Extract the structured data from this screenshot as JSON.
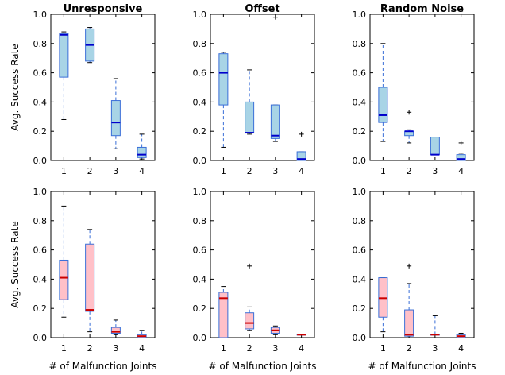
{
  "chart_data": {
    "type": "box",
    "ylabel": "Avg. Success Rate",
    "xlabel": "# of Malfunction Joints",
    "xticks": [
      "1",
      "2",
      "3",
      "4"
    ],
    "ylim": [
      0.0,
      1.0
    ],
    "yticks": [
      "0.0",
      "0.2",
      "0.4",
      "0.6",
      "0.8",
      "1.0"
    ],
    "column_titles": [
      "Unresponsive",
      "Offset",
      "Random Noise"
    ],
    "row_colors": [
      {
        "fill": "#a8d4e6",
        "median": "#0000cc",
        "whisker": "#3a6fd8"
      },
      {
        "fill": "#ffc0c8",
        "median": "#cc0000",
        "whisker": "#3a6fd8"
      }
    ],
    "panels": [
      {
        "row": 0,
        "col": 0,
        "boxes": [
          {
            "whislo": 0.28,
            "q1": 0.57,
            "med": 0.86,
            "q3": 0.87,
            "whishi": 0.88,
            "fliers": []
          },
          {
            "whislo": 0.67,
            "q1": 0.68,
            "med": 0.79,
            "q3": 0.9,
            "whishi": 0.91,
            "fliers": []
          },
          {
            "whislo": 0.08,
            "q1": 0.17,
            "med": 0.26,
            "q3": 0.41,
            "whishi": 0.56,
            "fliers": []
          },
          {
            "whislo": 0.01,
            "q1": 0.02,
            "med": 0.04,
            "q3": 0.09,
            "whishi": 0.18,
            "fliers": []
          }
        ]
      },
      {
        "row": 0,
        "col": 1,
        "boxes": [
          {
            "whislo": 0.09,
            "q1": 0.38,
            "med": 0.6,
            "q3": 0.73,
            "whishi": 0.74,
            "fliers": []
          },
          {
            "whislo": 0.18,
            "q1": 0.19,
            "med": 0.19,
            "q3": 0.4,
            "whishi": 0.62,
            "fliers": []
          },
          {
            "whislo": 0.13,
            "q1": 0.15,
            "med": 0.17,
            "q3": 0.38,
            "whishi": 0.38,
            "fliers": [
              0.98
            ]
          },
          {
            "whislo": 0.0,
            "q1": 0.0,
            "med": 0.01,
            "q3": 0.06,
            "whishi": 0.06,
            "fliers": [
              0.18
            ]
          }
        ]
      },
      {
        "row": 0,
        "col": 2,
        "boxes": [
          {
            "whislo": 0.13,
            "q1": 0.26,
            "med": 0.31,
            "q3": 0.5,
            "whishi": 0.8,
            "fliers": []
          },
          {
            "whislo": 0.12,
            "q1": 0.17,
            "med": 0.2,
            "q3": 0.2,
            "whishi": 0.21,
            "fliers": [
              0.33
            ]
          },
          {
            "whislo": 0.04,
            "q1": 0.04,
            "med": 0.04,
            "q3": 0.16,
            "whishi": 0.16,
            "fliers": []
          },
          {
            "whislo": 0.0,
            "q1": 0.0,
            "med": 0.01,
            "q3": 0.04,
            "whishi": 0.05,
            "fliers": [
              0.12
            ]
          }
        ]
      },
      {
        "row": 1,
        "col": 0,
        "boxes": [
          {
            "whislo": 0.14,
            "q1": 0.26,
            "med": 0.41,
            "q3": 0.53,
            "whishi": 0.9,
            "fliers": []
          },
          {
            "whislo": 0.04,
            "q1": 0.18,
            "med": 0.19,
            "q3": 0.64,
            "whishi": 0.74,
            "fliers": []
          },
          {
            "whislo": 0.02,
            "q1": 0.03,
            "med": 0.04,
            "q3": 0.07,
            "whishi": 0.12,
            "fliers": []
          },
          {
            "whislo": 0.0,
            "q1": 0.0,
            "med": 0.01,
            "q3": 0.02,
            "whishi": 0.05,
            "fliers": []
          }
        ]
      },
      {
        "row": 1,
        "col": 1,
        "boxes": [
          {
            "whislo": 0.0,
            "q1": 0.0,
            "med": 0.27,
            "q3": 0.31,
            "whishi": 0.35,
            "fliers": []
          },
          {
            "whislo": 0.05,
            "q1": 0.06,
            "med": 0.1,
            "q3": 0.17,
            "whishi": 0.21,
            "fliers": [
              0.49
            ]
          },
          {
            "whislo": 0.02,
            "q1": 0.03,
            "med": 0.05,
            "q3": 0.07,
            "whishi": 0.08,
            "fliers": []
          },
          {
            "whislo": 0.02,
            "q1": 0.02,
            "med": 0.02,
            "q3": 0.02,
            "whishi": 0.02,
            "fliers": []
          }
        ]
      },
      {
        "row": 1,
        "col": 2,
        "boxes": [
          {
            "whislo": 0.04,
            "q1": 0.14,
            "med": 0.27,
            "q3": 0.41,
            "whishi": 0.41,
            "fliers": []
          },
          {
            "whislo": 0.01,
            "q1": 0.01,
            "med": 0.02,
            "q3": 0.19,
            "whishi": 0.37,
            "fliers": [
              0.49
            ]
          },
          {
            "whislo": 0.02,
            "q1": 0.02,
            "med": 0.02,
            "q3": 0.02,
            "whishi": 0.15,
            "fliers": []
          },
          {
            "whislo": 0.0,
            "q1": 0.0,
            "med": 0.01,
            "q3": 0.02,
            "whishi": 0.03,
            "fliers": []
          }
        ]
      }
    ]
  }
}
